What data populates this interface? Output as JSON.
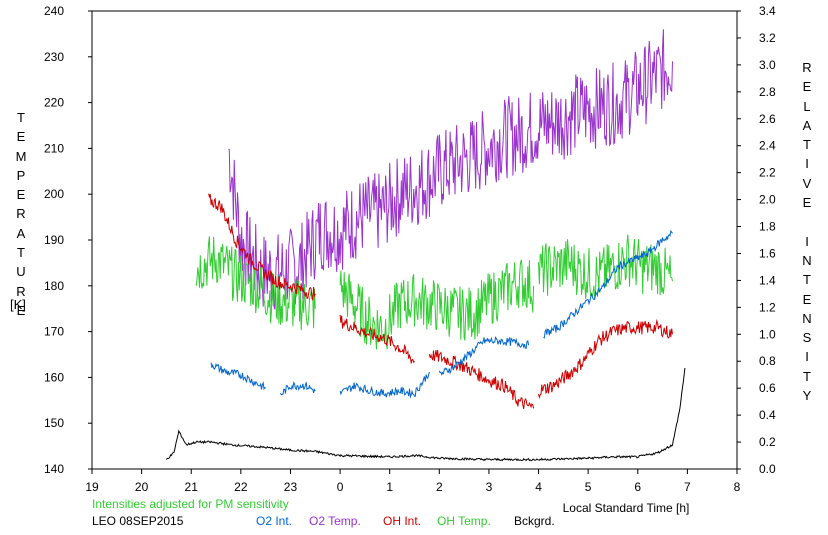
{
  "chart_data": {
    "type": "line",
    "station": "LEO 08SEP2015",
    "note": "Intensities adjusted for PM sensitivity",
    "left_axis": {
      "label": "TEMPERATURE",
      "unit": "[K]",
      "range": [
        140,
        240
      ],
      "ticks": [
        140,
        150,
        160,
        170,
        180,
        190,
        200,
        210,
        220,
        230,
        240
      ]
    },
    "right_axis": {
      "label": "RELATIVE INTENSITY",
      "range": [
        0.0,
        3.4
      ],
      "ticks": [
        "0.0",
        "0.2",
        "0.4",
        "0.6",
        "0.8",
        "1.0",
        "1.2",
        "1.4",
        "1.6",
        "1.8",
        "2.0",
        "2.2",
        "2.4",
        "2.6",
        "2.8",
        "3.0",
        "3.2",
        "3.4"
      ]
    },
    "x_axis": {
      "label": "Local Standard Time [h]",
      "range": [
        19,
        32
      ],
      "ticks": [
        "19",
        "20",
        "21",
        "22",
        "23",
        "0",
        "1",
        "2",
        "3",
        "4",
        "5",
        "6",
        "7",
        "8"
      ]
    },
    "legend": [
      {
        "name": "O2 Int.",
        "color": "#0066cc"
      },
      {
        "name": "O2 Temp.",
        "color": "#9933cc"
      },
      {
        "name": "OH Int.",
        "color": "#cc0000"
      },
      {
        "name": "OH Temp.",
        "color": "#33cc33"
      },
      {
        "name": "Bckgrd.",
        "color": "#000000"
      }
    ],
    "series": [
      {
        "name": "O2 Temp.",
        "axis": "left",
        "color": "#9933cc",
        "segments": [
          [
            [
              21.75,
              210
            ],
            [
              22.0,
              190
            ],
            [
              22.4,
              183
            ],
            [
              22.8,
              183
            ],
            [
              23.2,
              185
            ],
            [
              23.6,
              192
            ],
            [
              24.0,
              192
            ],
            [
              24.4,
              195
            ],
            [
              24.8,
              196
            ],
            [
              25.2,
              200
            ],
            [
              25.6,
              202
            ],
            [
              26.0,
              205
            ],
            [
              26.4,
              207
            ],
            [
              26.8,
              209
            ],
            [
              27.2,
              212
            ],
            [
              27.6,
              213
            ],
            [
              28.0,
              215
            ],
            [
              28.4,
              216
            ],
            [
              28.8,
              218
            ],
            [
              29.2,
              219
            ],
            [
              29.6,
              220
            ],
            [
              30.0,
              223
            ],
            [
              30.4,
              226
            ],
            [
              30.7,
              229
            ]
          ]
        ],
        "noise": 9
      },
      {
        "name": "OH Temp.",
        "axis": "left",
        "color": "#33cc33",
        "segments": [
          [
            [
              21.1,
              184
            ],
            [
              21.5,
              186
            ],
            [
              21.9,
              182
            ],
            [
              22.3,
              180
            ],
            [
              22.7,
              177
            ],
            [
              23.0,
              176
            ],
            [
              23.3,
              176
            ],
            [
              23.5,
              175
            ]
          ],
          [
            [
              24.0,
              180
            ],
            [
              24.3,
              176
            ],
            [
              24.6,
              172
            ],
            [
              24.9,
              171
            ],
            [
              25.2,
              176
            ],
            [
              25.5,
              177
            ],
            [
              25.8,
              176
            ],
            [
              26.1,
              175
            ],
            [
              26.4,
              174
            ],
            [
              26.7,
              174
            ],
            [
              27.0,
              177
            ],
            [
              27.3,
              179
            ],
            [
              27.6,
              181
            ],
            [
              27.9,
              180
            ]
          ],
          [
            [
              28.0,
              183
            ],
            [
              28.3,
              184
            ],
            [
              28.6,
              185
            ],
            [
              28.9,
              183
            ],
            [
              29.2,
              182
            ],
            [
              29.5,
              184
            ],
            [
              29.8,
              186
            ],
            [
              30.1,
              184
            ],
            [
              30.4,
              184
            ],
            [
              30.7,
              181
            ]
          ]
        ],
        "noise": 6
      },
      {
        "name": "OH Int.",
        "axis": "right",
        "color": "#cc0000",
        "segments": [
          [
            [
              21.35,
              2.0
            ],
            [
              21.6,
              1.95
            ],
            [
              21.9,
              1.7
            ],
            [
              22.2,
              1.55
            ],
            [
              22.5,
              1.45
            ],
            [
              22.8,
              1.38
            ],
            [
              23.1,
              1.35
            ],
            [
              23.3,
              1.32
            ],
            [
              23.5,
              1.3
            ]
          ],
          [
            [
              24.0,
              1.1
            ],
            [
              24.3,
              1.05
            ],
            [
              24.6,
              1.0
            ],
            [
              24.9,
              0.97
            ],
            [
              25.2,
              0.9
            ],
            [
              25.5,
              0.8
            ]
          ],
          [
            [
              25.8,
              0.85
            ],
            [
              26.1,
              0.82
            ],
            [
              26.4,
              0.78
            ],
            [
              26.7,
              0.72
            ],
            [
              27.0,
              0.66
            ],
            [
              27.3,
              0.62
            ],
            [
              27.6,
              0.5
            ],
            [
              27.9,
              0.45
            ]
          ],
          [
            [
              28.0,
              0.58
            ],
            [
              28.3,
              0.62
            ],
            [
              28.6,
              0.7
            ],
            [
              28.9,
              0.8
            ],
            [
              29.2,
              0.95
            ],
            [
              29.5,
              1.02
            ],
            [
              29.8,
              1.05
            ],
            [
              30.1,
              1.05
            ],
            [
              30.4,
              1.05
            ],
            [
              30.7,
              1.0
            ]
          ]
        ],
        "noise": 0.05
      },
      {
        "name": "O2 Int.",
        "axis": "right",
        "color": "#0066cc",
        "segments": [
          [
            [
              21.4,
              0.78
            ],
            [
              21.7,
              0.72
            ],
            [
              22.0,
              0.7
            ],
            [
              22.3,
              0.64
            ],
            [
              22.5,
              0.6
            ]
          ],
          [
            [
              22.8,
              0.55
            ],
            [
              23.0,
              0.62
            ],
            [
              23.3,
              0.62
            ],
            [
              23.5,
              0.58
            ]
          ],
          [
            [
              24.0,
              0.56
            ],
            [
              24.3,
              0.62
            ],
            [
              24.6,
              0.58
            ],
            [
              24.9,
              0.56
            ],
            [
              25.2,
              0.58
            ],
            [
              25.5,
              0.56
            ],
            [
              25.8,
              0.72
            ]
          ],
          [
            [
              26.0,
              0.7
            ],
            [
              26.3,
              0.76
            ],
            [
              26.6,
              0.85
            ],
            [
              26.9,
              0.95
            ],
            [
              27.2,
              0.95
            ],
            [
              27.5,
              0.94
            ],
            [
              27.8,
              0.92
            ]
          ],
          [
            [
              28.1,
              1.0
            ],
            [
              28.4,
              1.05
            ],
            [
              28.7,
              1.15
            ],
            [
              29.0,
              1.25
            ],
            [
              29.3,
              1.35
            ],
            [
              29.6,
              1.5
            ],
            [
              29.9,
              1.55
            ],
            [
              30.2,
              1.6
            ],
            [
              30.5,
              1.7
            ],
            [
              30.7,
              1.75
            ]
          ]
        ],
        "noise": 0.03
      },
      {
        "name": "Bckgrd.",
        "axis": "right",
        "color": "#000000",
        "segments": [
          [
            [
              20.5,
              0.07
            ],
            [
              20.65,
              0.12
            ],
            [
              20.75,
              0.28
            ],
            [
              20.9,
              0.18
            ],
            [
              21.1,
              0.2
            ],
            [
              21.4,
              0.2
            ],
            [
              21.8,
              0.18
            ],
            [
              22.5,
              0.16
            ],
            [
              23.0,
              0.14
            ],
            [
              23.5,
              0.13
            ],
            [
              24.0,
              0.1
            ],
            [
              25.0,
              0.09
            ],
            [
              25.5,
              0.1
            ],
            [
              26.0,
              0.08
            ],
            [
              27.0,
              0.07
            ],
            [
              28.0,
              0.07
            ],
            [
              29.0,
              0.08
            ],
            [
              29.5,
              0.09
            ],
            [
              30.0,
              0.09
            ],
            [
              30.4,
              0.12
            ],
            [
              30.7,
              0.18
            ],
            [
              30.85,
              0.45
            ],
            [
              30.95,
              0.75
            ]
          ]
        ],
        "noise": 0.008
      }
    ]
  }
}
